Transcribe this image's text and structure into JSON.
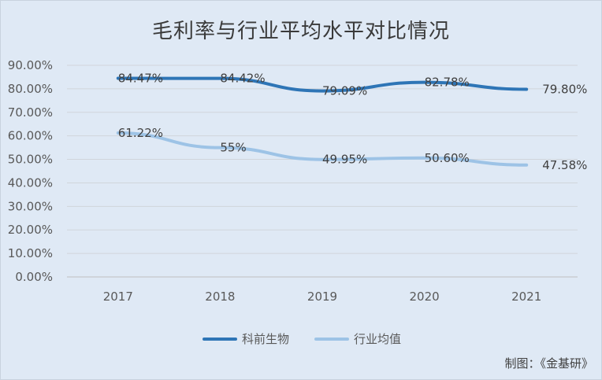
{
  "chart_data": {
    "type": "line",
    "title": "毛利率与行业平均水平对比情况",
    "categories": [
      "2017",
      "2018",
      "2019",
      "2020",
      "2021"
    ],
    "series": [
      {
        "name": "科前生物",
        "values": [
          84.47,
          84.42,
          79.09,
          82.78,
          79.8
        ],
        "labels": [
          "84.47%",
          "84.42%",
          "79.09%",
          "82.78%",
          "79.80%"
        ],
        "color": "#2e75b6"
      },
      {
        "name": "行业均值",
        "values": [
          61.22,
          55,
          49.95,
          50.6,
          47.58
        ],
        "labels": [
          "61.22%",
          "55%",
          "49.95%",
          "50.60%",
          "47.58%"
        ],
        "color": "#9dc3e6"
      }
    ],
    "ylim": [
      0,
      90
    ],
    "yticks": [
      "0.00%",
      "10.00%",
      "20.00%",
      "30.00%",
      "40.00%",
      "50.00%",
      "60.00%",
      "70.00%",
      "80.00%",
      "90.00%"
    ],
    "grid": true,
    "legend": "bottom"
  },
  "credit": "制图：《金基研》"
}
